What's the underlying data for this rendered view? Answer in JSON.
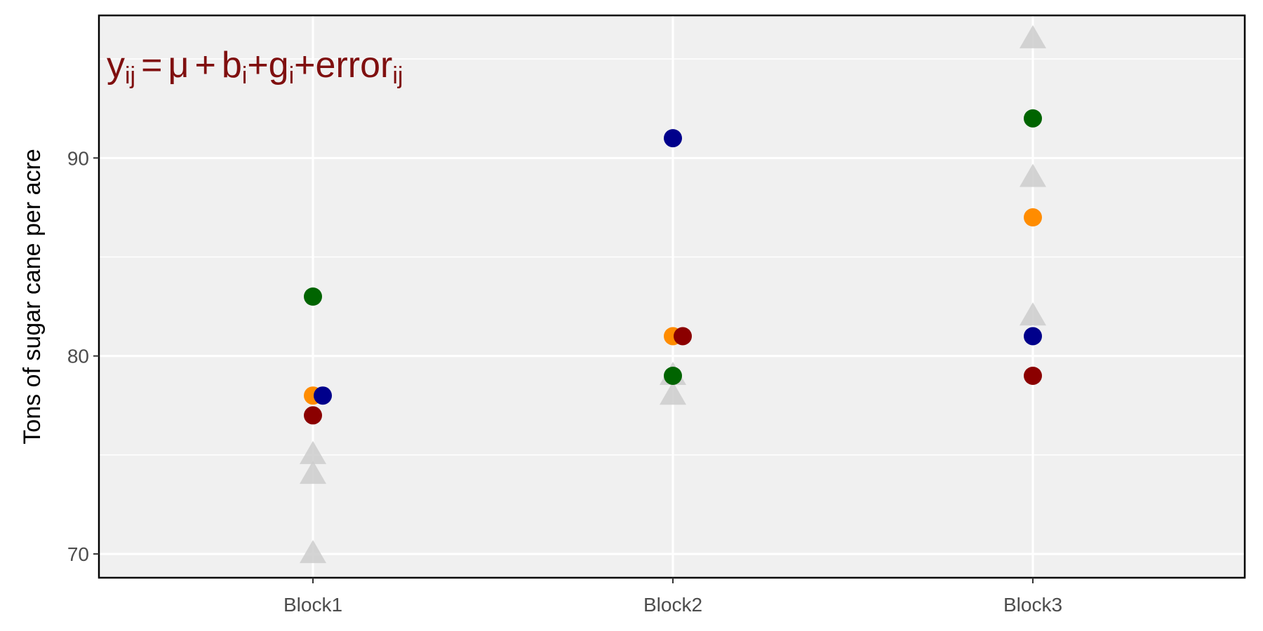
{
  "chart_data": {
    "type": "scatter",
    "title": "",
    "xlabel": "",
    "ylabel": "Tons of sugar cane per acre",
    "categories": [
      "Block1",
      "Block2",
      "Block3"
    ],
    "ylim": [
      68.8,
      97.2
    ],
    "yticks": [
      70,
      80,
      90
    ],
    "grid": true,
    "legend": "none",
    "annotation": {
      "y": "y",
      "y_sub": "ij",
      "eq": "=",
      "mu": "μ",
      "plus": "+",
      "b": "b",
      "b_sub": "i",
      "g": "+g",
      "g_sub": "i",
      "err": "+error",
      "err_sub": "ij",
      "color": "#7f0f0f"
    },
    "series": [
      {
        "color": "#006400",
        "marker": "circle",
        "points": [
          {
            "x": "Block1",
            "y": 83
          },
          {
            "x": "Block2",
            "y": 79
          },
          {
            "x": "Block3",
            "y": 92
          }
        ]
      },
      {
        "color": "#FF8C00",
        "marker": "circle",
        "points": [
          {
            "x": "Block1",
            "y": 78
          },
          {
            "x": "Block2",
            "y": 81
          },
          {
            "x": "Block3",
            "y": 87
          }
        ]
      },
      {
        "color": "#00008B",
        "marker": "circle",
        "points": [
          {
            "x": "Block1",
            "y": 78
          },
          {
            "x": "Block2",
            "y": 91
          },
          {
            "x": "Block3",
            "y": 81
          }
        ]
      },
      {
        "color": "#8B0000",
        "marker": "circle",
        "points": [
          {
            "x": "Block1",
            "y": 77
          },
          {
            "x": "Block2",
            "y": 81
          },
          {
            "x": "Block3",
            "y": 79
          }
        ]
      },
      {
        "color": "#cccccc",
        "marker": "triangle",
        "points": [
          {
            "x": "Block1",
            "y": 75
          },
          {
            "x": "Block1",
            "y": 74
          },
          {
            "x": "Block1",
            "y": 70
          },
          {
            "x": "Block2",
            "y": 79
          },
          {
            "x": "Block2",
            "y": 78
          },
          {
            "x": "Block3",
            "y": 96
          },
          {
            "x": "Block3",
            "y": 89
          },
          {
            "x": "Block3",
            "y": 82
          }
        ]
      }
    ]
  }
}
